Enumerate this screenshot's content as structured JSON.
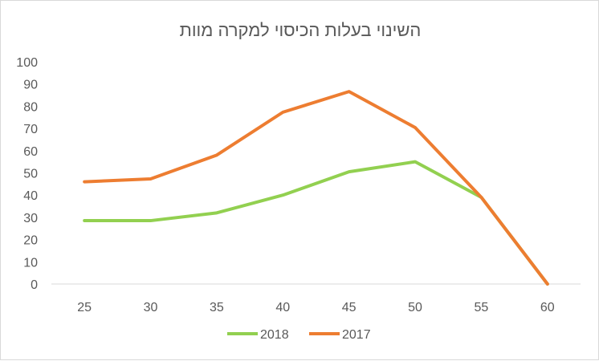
{
  "chart_data": {
    "type": "line",
    "title": "השינוי בעלות הכיסוי למקרה מוות",
    "xlabel": "",
    "ylabel": "",
    "categories": [
      "25",
      "30",
      "35",
      "40",
      "45",
      "50",
      "55",
      "60"
    ],
    "ylim": [
      0,
      100
    ],
    "yticks": [
      "0",
      "10",
      "20",
      "30",
      "40",
      "50",
      "60",
      "70",
      "80",
      "90",
      "100"
    ],
    "grid": false,
    "legend_position": "bottom",
    "series": [
      {
        "name": "2018",
        "color": "#92d050",
        "values": [
          28.5,
          28.5,
          32,
          40,
          50.5,
          55,
          39,
          0
        ]
      },
      {
        "name": "2017",
        "color": "#ed7d31",
        "values": [
          46,
          47.3,
          58,
          77.3,
          86.6,
          70.4,
          39,
          0
        ]
      }
    ]
  }
}
